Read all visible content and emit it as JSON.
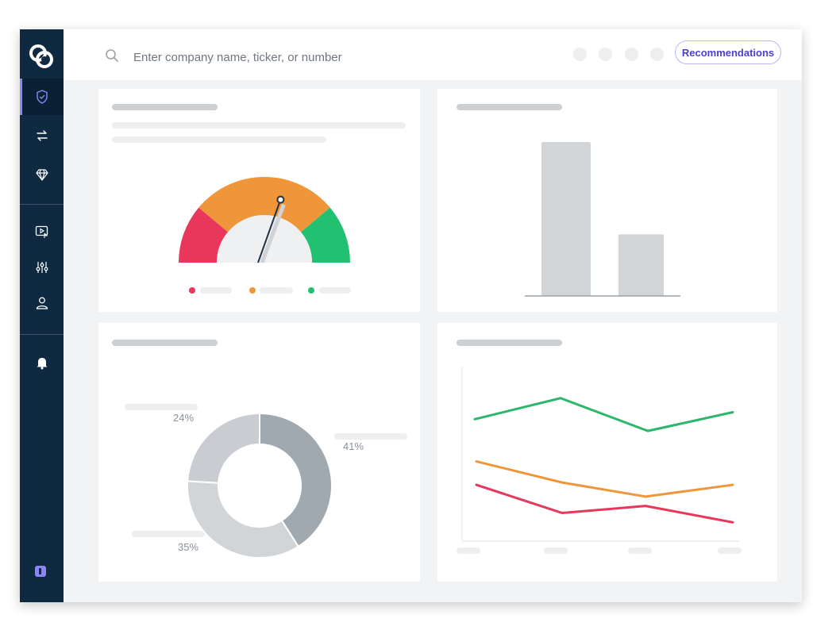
{
  "search": {
    "placeholder": "Enter company name, ticker, or number"
  },
  "header": {
    "recommendations_label": "Recommendations"
  },
  "sidebar": {
    "items": [
      {
        "name": "shield-icon",
        "active": true
      },
      {
        "name": "transfer-arrows-icon",
        "active": false
      },
      {
        "name": "diamond-icon",
        "active": false
      },
      {
        "name": "video-play-icon",
        "active": false
      },
      {
        "name": "sliders-icon",
        "active": false
      },
      {
        "name": "user-icon",
        "active": false
      },
      {
        "name": "bell-icon",
        "active": false
      }
    ]
  },
  "colors": {
    "sidebar": "#0f2a40",
    "accent": "#8b87f0",
    "red": "#e8375a",
    "orange": "#f0963a",
    "green": "#22c172"
  },
  "chart_data": [
    {
      "type": "gauge",
      "segments": [
        "red",
        "orange",
        "green"
      ],
      "needle_fraction": 0.58
    },
    {
      "type": "bar",
      "values": [
        100,
        40
      ]
    },
    {
      "type": "pie",
      "slices": [
        {
          "label": "41%",
          "value": 41,
          "color": "#a0a8b0"
        },
        {
          "label": "35%",
          "value": 35,
          "color": "#d1d5d8"
        },
        {
          "label": "24%",
          "value": 24,
          "color": "#c9cdd1"
        }
      ]
    },
    {
      "type": "line",
      "series": [
        {
          "color": "#2cb66c",
          "values": [
            82,
            100,
            72,
            88
          ]
        },
        {
          "color": "#f0963a",
          "values": [
            46,
            28,
            16,
            26
          ]
        },
        {
          "color": "#e8375a",
          "values": [
            26,
            2,
            8,
            -6
          ]
        }
      ],
      "ylim": [
        -20,
        110
      ]
    }
  ]
}
